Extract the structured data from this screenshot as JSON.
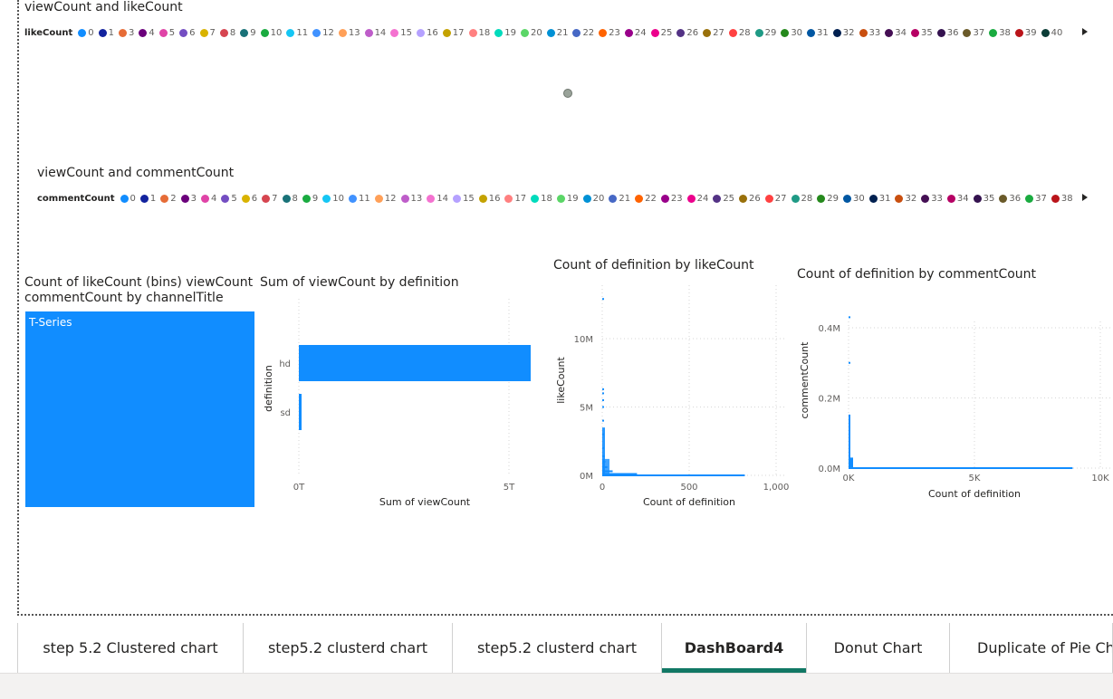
{
  "visual1": {
    "title": "viewCount and likeCount",
    "legend_title": "likeCount",
    "legend_items": [
      "0",
      "1",
      "3",
      "4",
      "5",
      "6",
      "7",
      "8",
      "9",
      "10",
      "11",
      "12",
      "13",
      "14",
      "15",
      "16",
      "17",
      "18",
      "19",
      "20",
      "21",
      "22",
      "23",
      "24",
      "25",
      "26",
      "27",
      "28",
      "29",
      "30",
      "31",
      "32",
      "33",
      "34",
      "35",
      "36",
      "37",
      "38",
      "39",
      "40"
    ],
    "point_color": "#9aa39a"
  },
  "visual2": {
    "title": "viewCount and commentCount",
    "legend_title": "commentCount",
    "legend_items": [
      "0",
      "1",
      "2",
      "3",
      "4",
      "5",
      "6",
      "7",
      "8",
      "9",
      "10",
      "11",
      "12",
      "13",
      "14",
      "15",
      "16",
      "17",
      "18",
      "19",
      "20",
      "21",
      "22",
      "23",
      "24",
      "25",
      "26",
      "27",
      "28",
      "29",
      "30",
      "31",
      "32",
      "33",
      "34",
      "35",
      "36",
      "37",
      "38"
    ]
  },
  "legend_palette": [
    "#118DFF",
    "#12239E",
    "#E66C37",
    "#6B007B",
    "#E044A7",
    "#744EC2",
    "#D9B300",
    "#D64550",
    "#197278",
    "#1AAB40",
    "#15C6F4",
    "#4092FF",
    "#FFA058",
    "#BE5DC9",
    "#F472D0",
    "#B5A1FF",
    "#C4A200",
    "#FF8080",
    "#00DBBC",
    "#5BD667",
    "#0091D5",
    "#4668C5",
    "#FF6300",
    "#99008A",
    "#EC008C",
    "#533285",
    "#99700A",
    "#FF4141",
    "#1F9A85",
    "#25891C",
    "#0057A2",
    "#002050",
    "#C94F0F",
    "#450F54",
    "#B60064",
    "#34124F",
    "#6A5A29",
    "#1AAB40",
    "#BA141A",
    "#0C3D37"
  ],
  "treemap": {
    "title_line1": "Count of likeCount (bins) viewCount",
    "title_line2": "commentCount by channelTitle",
    "label": "T-Series",
    "color": "#118DFF"
  },
  "accent": "#118DFF",
  "chart_data": [
    {
      "type": "bar",
      "title": "Sum of viewCount by definition",
      "orientation": "horizontal",
      "categories": [
        "hd",
        "sd"
      ],
      "values": [
        5.5,
        0.1
      ],
      "value_unit": "T",
      "xlabel": "Sum of viewCount",
      "ylabel": "definition",
      "x_ticks": [
        "0T",
        "5T"
      ],
      "xlim": [
        0,
        6
      ],
      "grid": true
    },
    {
      "type": "bar",
      "title": "Count of definition by likeCount",
      "orientation": "horizontal",
      "xlabel": "Count of definition",
      "ylabel": "likeCount",
      "x_ticks": [
        "0",
        "500",
        "1,000"
      ],
      "y_ticks": [
        "0M",
        "5M",
        "10M"
      ],
      "xlim": [
        0,
        1000
      ],
      "ylim": [
        0,
        13
      ],
      "grid": true,
      "bars": [
        {
          "y": 12.9,
          "x": 3
        },
        {
          "y": 6.3,
          "x": 3
        },
        {
          "y": 6.0,
          "x": 3
        },
        {
          "y": 5.5,
          "x": 3
        },
        {
          "y": 5.0,
          "x": 4
        },
        {
          "y": 4.0,
          "x": 5
        },
        {
          "y": 3.0,
          "x": 7
        },
        {
          "y": 2.0,
          "x": 10
        },
        {
          "y": 1.4,
          "x": 14
        },
        {
          "y": 1.0,
          "x": 18
        },
        {
          "y": 0.6,
          "x": 30
        },
        {
          "y": 0.3,
          "x": 60
        },
        {
          "y": 0.1,
          "x": 200
        },
        {
          "y": 0.0,
          "x": 820
        }
      ]
    },
    {
      "type": "bar",
      "title": "Count of definition by commentCount",
      "orientation": "horizontal",
      "xlabel": "Count of definition",
      "ylabel": "commentCount",
      "x_ticks": [
        "0K",
        "5K",
        "10K"
      ],
      "y_ticks": [
        "0.0M",
        "0.2M",
        "0.4M"
      ],
      "xlim": [
        0,
        10000
      ],
      "ylim": [
        0,
        0.45
      ],
      "grid": true,
      "bars": [
        {
          "y": 0.43,
          "x": 15
        },
        {
          "y": 0.3,
          "x": 15
        },
        {
          "y": 0.15,
          "x": 30
        },
        {
          "y": 0.08,
          "x": 40
        },
        {
          "y": 0.04,
          "x": 60
        },
        {
          "y": 0.02,
          "x": 100
        },
        {
          "y": 0.0,
          "x": 8900
        }
      ]
    }
  ],
  "tabs": [
    {
      "label": "step 5.2 Clustered chart",
      "active": false
    },
    {
      "label": "step5.2 clusterd chart",
      "active": false
    },
    {
      "label": "step5.2 clusterd chart",
      "active": false
    },
    {
      "label": "DashBoard4",
      "active": true
    },
    {
      "label": "Donut Chart",
      "active": false
    },
    {
      "label": "Duplicate of Pie Ch",
      "active": false
    }
  ],
  "tab_accent": "#117865"
}
